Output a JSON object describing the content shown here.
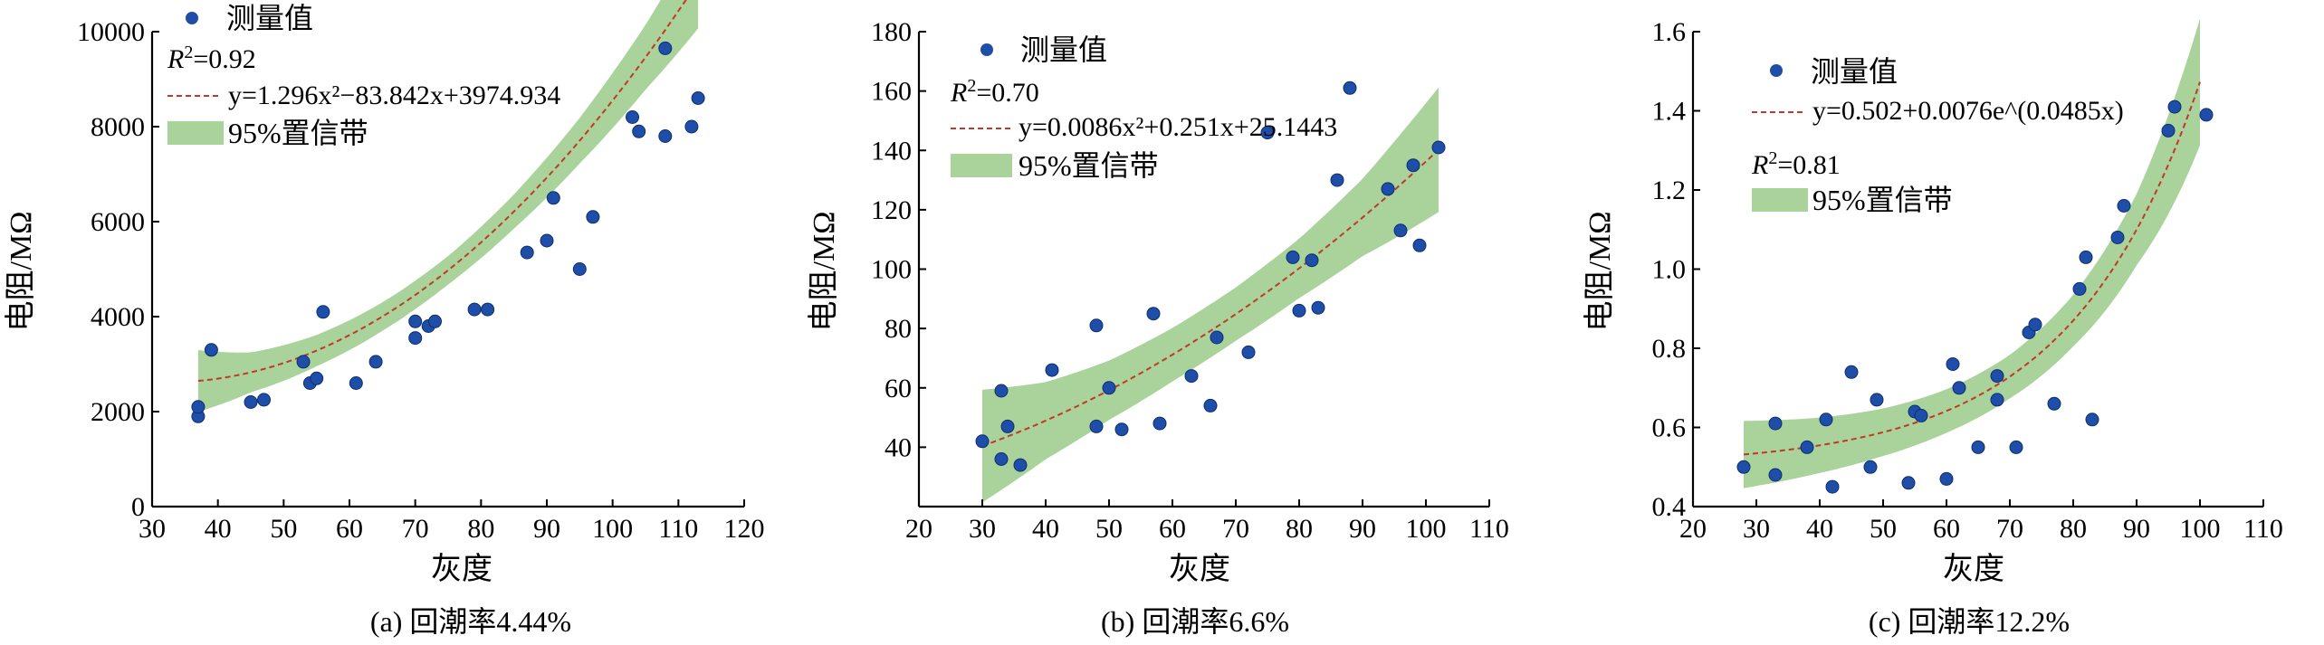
{
  "charts": [
    {
      "id": "a",
      "caption": "(a) 回潮率4.44%",
      "xlabel": "灰度",
      "ylabel": "电阻/MΩ",
      "legend_measured": "测量值",
      "r2_text": "R²=0.92",
      "r2_display": "0.92",
      "eq_text": "y=1.296x²−83.842x+3974.934",
      "band_text": "95%置信带"
    },
    {
      "id": "b",
      "caption": "(b) 回潮率6.6%",
      "xlabel": "灰度",
      "ylabel": "电阻/MΩ",
      "legend_measured": "测量值",
      "r2_text": "R²=0.70",
      "r2_display": "0.70",
      "eq_text": "y=0.0086x²+0.251x+25.1443",
      "band_text": "95%置信带"
    },
    {
      "id": "c",
      "caption": "(c) 回潮率12.2%",
      "xlabel": "灰度",
      "ylabel": "电阻/MΩ",
      "legend_measured": "测量值",
      "r2_text": "R²=0.81",
      "r2_display": "0.81",
      "eq_text": "y=0.502+0.0076e^(0.0485x)",
      "band_text": "95%置信带"
    }
  ],
  "colors": {
    "points": "#1f4ea8",
    "fit_line": "#c0392b",
    "band": "#a9d39a"
  },
  "chart_data": [
    {
      "type": "scatter",
      "title": "",
      "xlabel": "灰度",
      "ylabel": "电阻/MΩ",
      "xlim": [
        30,
        120
      ],
      "ylim": [
        0,
        10000
      ],
      "xticks": [
        30,
        40,
        50,
        60,
        70,
        80,
        90,
        100,
        110,
        120
      ],
      "yticks": [
        0,
        2000,
        4000,
        6000,
        8000,
        10000
      ],
      "fit": {
        "model": "quadratic",
        "a": 1.296,
        "b": -83.842,
        "c": 3974.934,
        "x_range": [
          37,
          113
        ]
      },
      "band_halfwidth": [
        [
          37,
          650
        ],
        [
          45,
          420
        ],
        [
          55,
          330
        ],
        [
          65,
          300
        ],
        [
          75,
          300
        ],
        [
          85,
          360
        ],
        [
          95,
          480
        ],
        [
          105,
          680
        ],
        [
          113,
          980
        ]
      ],
      "series": [
        {
          "name": "测量值",
          "x": [
            37,
            37,
            39,
            45,
            47,
            53,
            54,
            55,
            56,
            61,
            64,
            70,
            70,
            72,
            73,
            79,
            81,
            87,
            90,
            91,
            95,
            97,
            103,
            104,
            108,
            108,
            112,
            113
          ],
          "y": [
            1900,
            2100,
            3300,
            2200,
            2250,
            3050,
            2600,
            2700,
            4100,
            2600,
            3050,
            3900,
            3550,
            3800,
            3900,
            4150,
            4150,
            5350,
            5600,
            6500,
            5000,
            6100,
            8200,
            7900,
            9650,
            7800,
            8000,
            8600
          ]
        }
      ]
    },
    {
      "type": "scatter",
      "title": "",
      "xlabel": "灰度",
      "ylabel": "电阻/MΩ",
      "xlim": [
        20,
        110
      ],
      "ylim": [
        20,
        180
      ],
      "xticks": [
        20,
        30,
        40,
        50,
        60,
        70,
        80,
        90,
        100,
        110
      ],
      "yticks": [
        40,
        60,
        80,
        100,
        120,
        140,
        160,
        180
      ],
      "fit": {
        "model": "quadratic",
        "a": 0.0086,
        "b": 0.251,
        "c": 25.1443,
        "x_range": [
          30,
          102
        ]
      },
      "band_halfwidth": [
        [
          30,
          19
        ],
        [
          40,
          13
        ],
        [
          50,
          10
        ],
        [
          60,
          9
        ],
        [
          70,
          9
        ],
        [
          80,
          10
        ],
        [
          90,
          13
        ],
        [
          102,
          21
        ]
      ],
      "series": [
        {
          "name": "测量值",
          "x": [
            30,
            33,
            33,
            34,
            36,
            41,
            48,
            48,
            50,
            52,
            57,
            58,
            63,
            66,
            67,
            72,
            75,
            79,
            80,
            82,
            83,
            86,
            88,
            94,
            96,
            98,
            99,
            102
          ],
          "y": [
            42,
            36,
            59,
            47,
            34,
            66,
            81,
            47,
            60,
            46,
            85,
            48,
            64,
            54,
            77,
            72,
            146,
            104,
            86,
            103,
            87,
            130,
            161,
            127,
            113,
            135,
            108,
            141
          ]
        }
      ]
    },
    {
      "type": "scatter",
      "title": "",
      "xlabel": "灰度",
      "ylabel": "电阻/MΩ",
      "xlim": [
        20,
        110
      ],
      "ylim": [
        0.4,
        1.6
      ],
      "xticks": [
        20,
        30,
        40,
        50,
        60,
        70,
        80,
        90,
        100,
        110
      ],
      "yticks": [
        0.4,
        0.6,
        0.8,
        1.0,
        1.2,
        1.4,
        1.6
      ],
      "fit": {
        "model": "exponential",
        "a": 0.502,
        "b": 0.0076,
        "k": 0.0485,
        "x_range": [
          28,
          100
        ]
      },
      "band_halfwidth": [
        [
          28,
          0.085
        ],
        [
          40,
          0.07
        ],
        [
          50,
          0.06
        ],
        [
          60,
          0.055
        ],
        [
          70,
          0.055
        ],
        [
          80,
          0.065
        ],
        [
          90,
          0.09
        ],
        [
          100,
          0.16
        ]
      ],
      "series": [
        {
          "name": "测量值",
          "x": [
            28,
            33,
            33,
            38,
            41,
            42,
            45,
            48,
            49,
            54,
            55,
            56,
            60,
            61,
            62,
            65,
            68,
            68,
            71,
            73,
            74,
            77,
            81,
            82,
            83,
            87,
            88,
            95,
            96,
            101
          ],
          "y": [
            0.5,
            0.61,
            0.48,
            0.55,
            0.62,
            0.45,
            0.74,
            0.5,
            0.67,
            0.46,
            0.64,
            0.63,
            0.47,
            0.76,
            0.7,
            0.55,
            0.67,
            0.73,
            0.55,
            0.84,
            0.86,
            0.66,
            0.95,
            1.03,
            0.62,
            1.08,
            1.16,
            1.35,
            1.41,
            1.39
          ]
        }
      ]
    }
  ]
}
